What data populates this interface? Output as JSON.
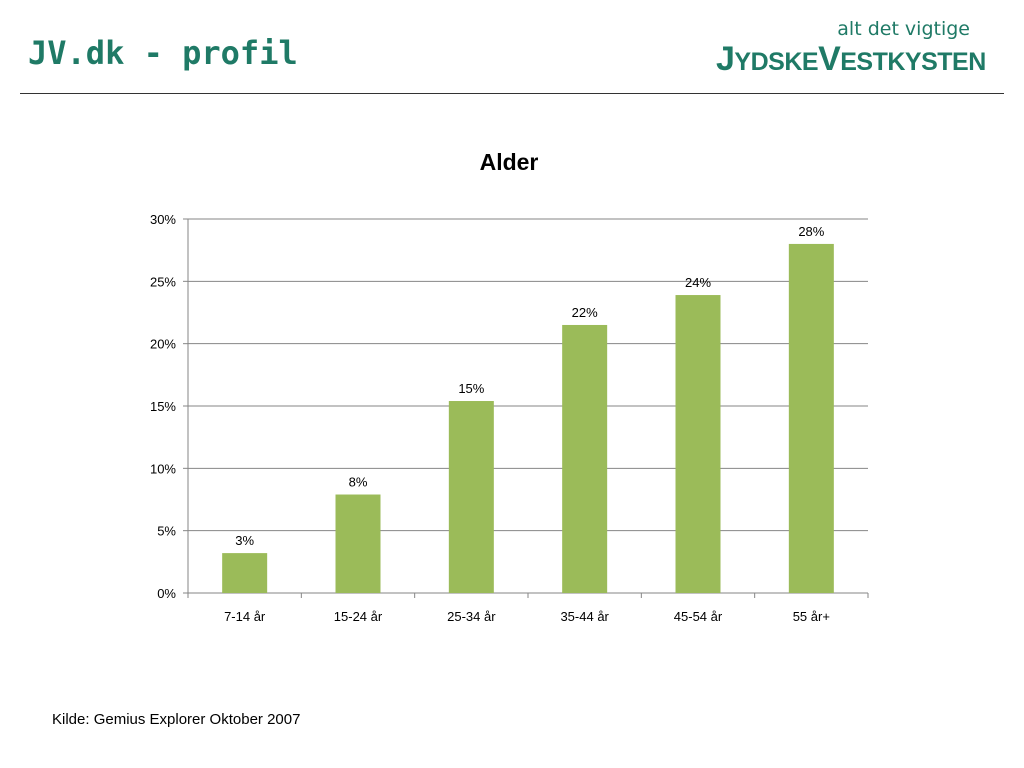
{
  "slide": {
    "title": "JV.dk - profil",
    "logo": {
      "tagline": "alt det vigtige",
      "wordmark": "JYDSKEVESTKYSTEN"
    },
    "source": "Kilde: Gemius Explorer Oktober 2007"
  },
  "colors": {
    "accent": "#1f7a66",
    "bar": "#9bbb59",
    "grid": "#868686"
  },
  "chart_data": {
    "type": "bar",
    "title": "Alder",
    "xlabel": "",
    "ylabel": "",
    "categories": [
      "7-14 år",
      "15-24 år",
      "25-34 år",
      "35-44 år",
      "45-54 år",
      "55 år+"
    ],
    "values": [
      3.2,
      7.9,
      15.4,
      21.5,
      23.9,
      28.0
    ],
    "data_labels": [
      "3%",
      "8%",
      "15%",
      "22%",
      "24%",
      "28%"
    ],
    "ylim": [
      0,
      30
    ],
    "yticks": [
      0,
      5,
      10,
      15,
      20,
      25,
      30
    ],
    "ytick_labels": [
      "0%",
      "5%",
      "10%",
      "15%",
      "20%",
      "25%",
      "30%"
    ],
    "grid": true,
    "legend": "none"
  }
}
